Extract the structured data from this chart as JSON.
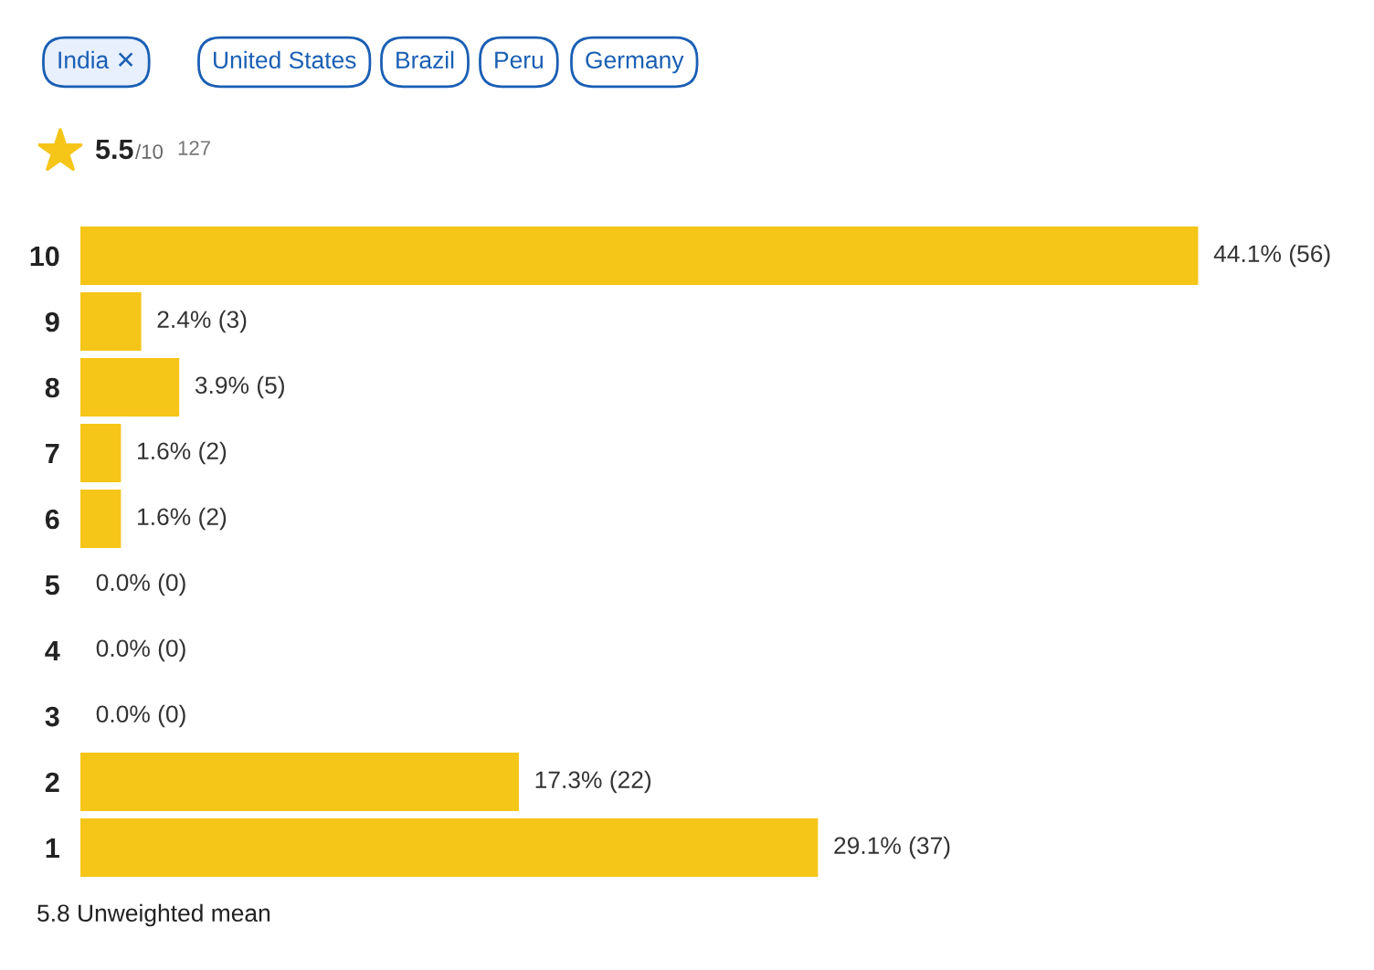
{
  "chart_data": {
    "type": "bar",
    "orientation": "horizontal",
    "categories": [
      "10",
      "9",
      "8",
      "7",
      "6",
      "5",
      "4",
      "3",
      "2",
      "1"
    ],
    "values": [
      44.1,
      2.4,
      3.9,
      1.6,
      1.6,
      0.0,
      0.0,
      0.0,
      17.3,
      29.1
    ],
    "value_labels": [
      "44.1% (56)",
      "2.4% (3)",
      "3.9% (5)",
      "1.6% (2)",
      "1.6% (2)",
      "0.0% (0)",
      "0.0% (0)",
      "0.0% (0)",
      "17.3% (22)",
      "29.1% (37)"
    ],
    "color": "#f5c518",
    "tick_labels": "y",
    "grid": false,
    "legend": false,
    "annotations": [
      "India ✕",
      "United States",
      "Brazil",
      "Peru",
      "Germany",
      "5.5",
      "/10",
      "127",
      "5.8 Unweighted mean"
    ]
  }
}
